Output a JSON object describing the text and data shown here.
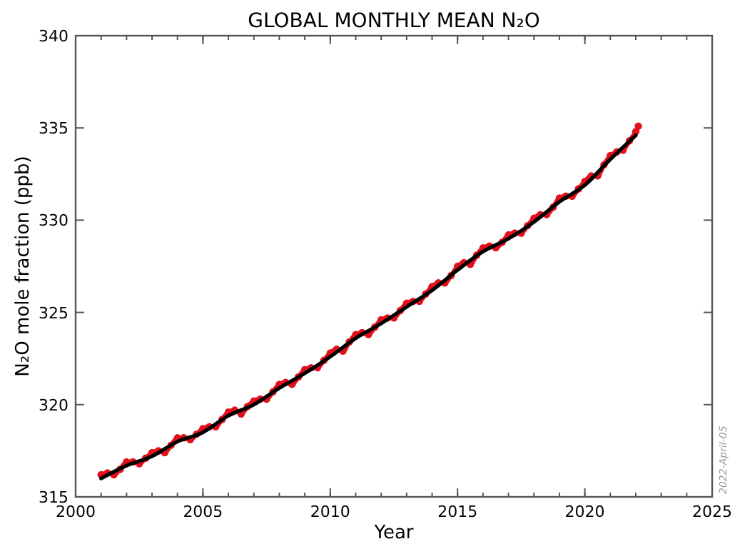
{
  "chart_data": {
    "type": "line",
    "title": "GLOBAL MONTHLY MEAN N₂O",
    "xlabel": "Year",
    "ylabel": "N₂O mole fraction (ppb)",
    "xlim": [
      2000,
      2025
    ],
    "xticks": [
      2000,
      2005,
      2010,
      2015,
      2020,
      2025
    ],
    "ylim": [
      315,
      340
    ],
    "yticks": [
      315,
      320,
      325,
      330,
      335,
      340
    ],
    "grid": false,
    "annotations": [
      "2022-April-05"
    ],
    "series": [
      {
        "color": "#e3101c",
        "marker": "circle",
        "x": [
          2001,
          2001.25,
          2001.5,
          2001.75,
          2002,
          2002.25,
          2002.5,
          2002.75,
          2003,
          2003.25,
          2003.5,
          2003.75,
          2004,
          2004.25,
          2004.5,
          2004.75,
          2005,
          2005.25,
          2005.5,
          2005.75,
          2006,
          2006.25,
          2006.5,
          2006.75,
          2007,
          2007.25,
          2007.5,
          2007.75,
          2008,
          2008.25,
          2008.5,
          2008.75,
          2009,
          2009.25,
          2009.5,
          2009.75,
          2010,
          2010.25,
          2010.5,
          2010.75,
          2011,
          2011.25,
          2011.5,
          2011.75,
          2012,
          2012.25,
          2012.5,
          2012.75,
          2013,
          2013.25,
          2013.5,
          2013.75,
          2014,
          2014.25,
          2014.5,
          2014.75,
          2015,
          2015.25,
          2015.5,
          2015.75,
          2016,
          2016.25,
          2016.5,
          2016.75,
          2017,
          2017.25,
          2017.5,
          2017.75,
          2018,
          2018.25,
          2018.5,
          2018.75,
          2019,
          2019.25,
          2019.5,
          2019.75,
          2020,
          2020.25,
          2020.5,
          2020.75,
          2021,
          2021.25,
          2021.5,
          2021.75,
          2022,
          2022.1
        ],
        "values": [
          316.2,
          316.3,
          316.2,
          316.5,
          316.9,
          316.9,
          316.8,
          317.1,
          317.4,
          317.5,
          317.4,
          317.8,
          318.2,
          318.2,
          318.1,
          318.4,
          318.7,
          318.8,
          318.8,
          319.2,
          319.6,
          319.7,
          319.5,
          319.9,
          320.2,
          320.3,
          320.3,
          320.7,
          321.1,
          321.2,
          321.1,
          321.5,
          321.9,
          322.0,
          322.0,
          322.4,
          322.8,
          323.0,
          322.9,
          323.4,
          323.8,
          323.9,
          323.8,
          324.2,
          324.6,
          324.7,
          324.7,
          325.1,
          325.5,
          325.6,
          325.6,
          326.0,
          326.4,
          326.6,
          326.6,
          327.0,
          327.5,
          327.7,
          327.6,
          328.1,
          328.5,
          328.6,
          328.5,
          328.8,
          329.2,
          329.3,
          329.3,
          329.7,
          330.1,
          330.3,
          330.3,
          330.7,
          331.2,
          331.3,
          331.3,
          331.7,
          332.1,
          332.4,
          332.4,
          333.0,
          333.5,
          333.7,
          333.8,
          334.3,
          334.8,
          335.1
        ]
      },
      {
        "color": "#000000",
        "marker": "none",
        "x": [
          2001,
          2002,
          2003,
          2004,
          2005,
          2006,
          2007,
          2008,
          2009,
          2010,
          2011,
          2012,
          2013,
          2014,
          2015,
          2016,
          2017,
          2018,
          2019,
          2020,
          2021,
          2022
        ],
        "values": [
          316.0,
          316.7,
          317.2,
          318.0,
          318.5,
          319.4,
          320.0,
          320.9,
          321.7,
          322.6,
          323.6,
          324.4,
          325.3,
          326.2,
          327.3,
          328.3,
          329.0,
          329.9,
          331.0,
          331.9,
          333.3,
          334.6
        ]
      }
    ]
  }
}
